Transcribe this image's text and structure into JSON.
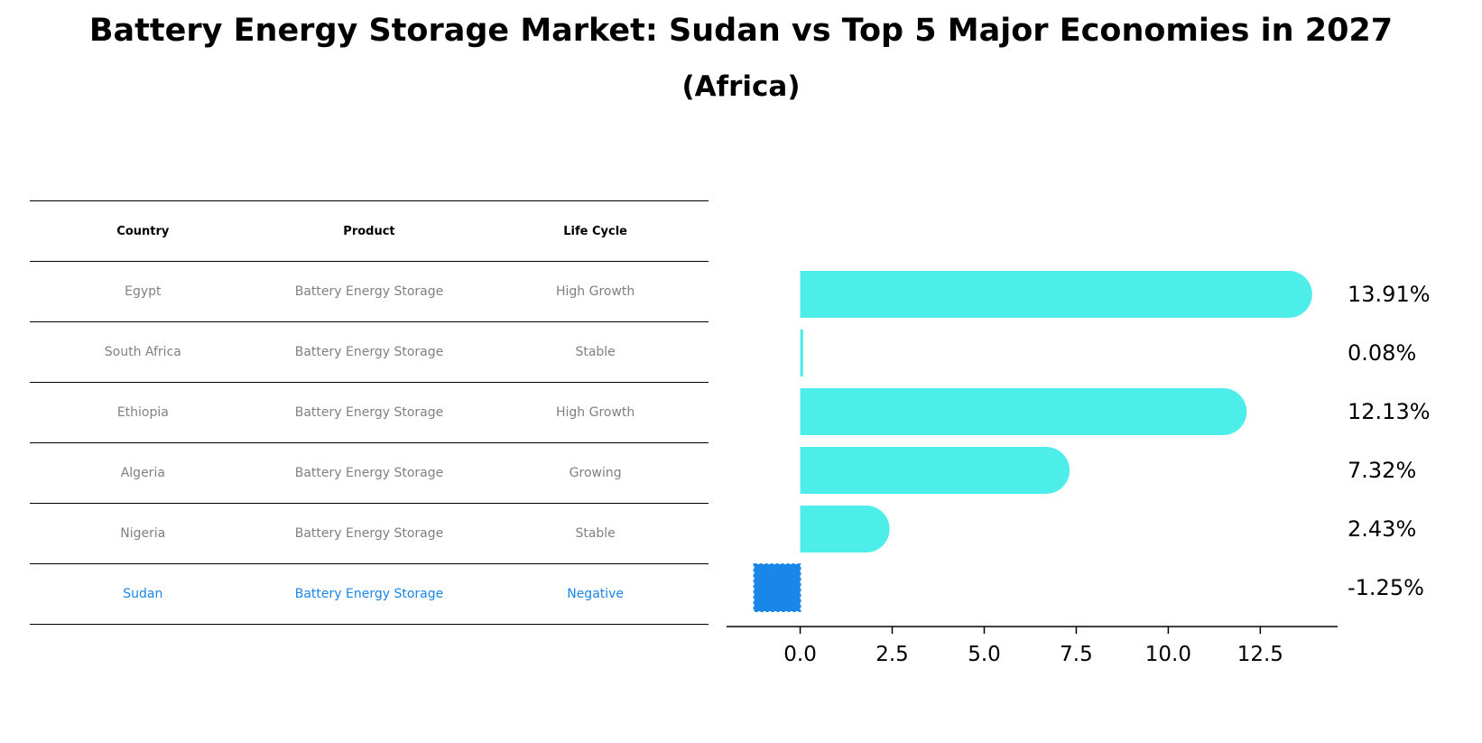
{
  "title": "Battery Energy Storage Market: Sudan vs Top 5 Major Economies in 2027",
  "subtitle": "(Africa)",
  "table": {
    "headers": [
      "Country",
      "Product",
      "Life Cycle"
    ],
    "rows": [
      [
        "Egypt",
        "Battery Energy Storage",
        "High Growth"
      ],
      [
        "South Africa",
        "Battery Energy Storage",
        "Stable"
      ],
      [
        "Ethiopia",
        "Battery Energy Storage",
        "High Growth"
      ],
      [
        "Algeria",
        "Battery Energy Storage",
        "Growing"
      ],
      [
        "Nigeria",
        "Battery Energy Storage",
        "Stable"
      ],
      [
        "Sudan",
        "Battery Energy Storage",
        "Negative"
      ]
    ],
    "highlight_row": 5,
    "highlight_color": "#1a86e8"
  },
  "chart_data": {
    "type": "bar",
    "orientation": "horizontal",
    "categories": [
      "Egypt",
      "South Africa",
      "Ethiopia",
      "Algeria",
      "Nigeria",
      "Sudan"
    ],
    "values": [
      13.91,
      0.08,
      12.13,
      7.32,
      2.43,
      -1.25
    ],
    "labels": [
      "13.91%",
      "0.08%",
      "12.13%",
      "7.32%",
      "2.43%",
      "-1.25%"
    ],
    "xticks": [
      0.0,
      2.5,
      5.0,
      7.5,
      10.0,
      12.5
    ],
    "xtick_labels": [
      "0.0",
      "2.5",
      "5.0",
      "7.5",
      "10.0",
      "12.5"
    ],
    "xlim": [
      -2.0,
      14.6
    ],
    "xlabel": "",
    "ylabel": "",
    "colors": {
      "default": "#4deeea",
      "highlight": "#1a86e8"
    },
    "highlight_index": 5
  }
}
